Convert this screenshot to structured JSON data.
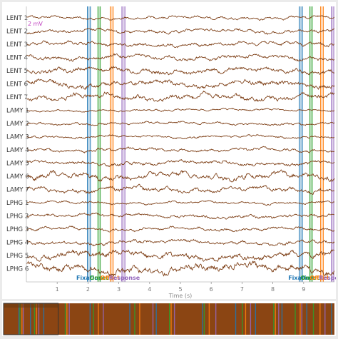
{
  "chart_data": {
    "type": "line",
    "xlabel": "Time (s)",
    "xlim": [
      0,
      10
    ],
    "x_ticks": [
      1,
      2,
      3,
      4,
      5,
      6,
      7,
      8,
      9
    ],
    "scale_label": "2 mV",
    "trace_color": "#7a3a10",
    "channels": [
      "LENT 1",
      "LENT 2",
      "LENT 3",
      "LENT 4",
      "LENT 5",
      "LENT 6",
      "LENT 7",
      "LAMY 1",
      "LAMY 2",
      "LAMY 3",
      "LAMY 4",
      "LAMY 5",
      "LAMY 6",
      "LAMY 7",
      "LPHG 1",
      "LPHG 2",
      "LPHG 3",
      "LPHG 4",
      "LPHG 5",
      "LPHG 6"
    ],
    "channel_amplitude": [
      0.45,
      0.55,
      0.6,
      0.7,
      0.8,
      0.9,
      0.9,
      0.35,
      0.4,
      0.4,
      0.5,
      0.6,
      1.0,
      0.8,
      0.4,
      0.55,
      0.5,
      0.6,
      1.1,
      1.3
    ],
    "events": [
      {
        "name": "Fixation",
        "color": "#1f77b4",
        "start": 1.98,
        "end": 2.08,
        "label_x": 1.62
      },
      {
        "name": "Onset",
        "color": "#2ca02c",
        "start": 2.32,
        "end": 2.4,
        "label_x": 2.05
      },
      {
        "name": "Offset",
        "color": "#ff7f0e",
        "start": 2.72,
        "end": 2.82,
        "label_x": 2.4
      },
      {
        "name": "Response",
        "color": "#9467bd",
        "start": 3.1,
        "end": 3.2,
        "label_x": 2.68
      },
      {
        "name": "Fixation",
        "color": "#1f77b4",
        "start": 8.86,
        "end": 8.96,
        "label_x": 8.5
      },
      {
        "name": "Onset",
        "color": "#2ca02c",
        "start": 9.2,
        "end": 9.28,
        "label_x": 8.9
      },
      {
        "name": "Offset",
        "color": "#ff7f0e",
        "start": 9.55,
        "end": 9.64,
        "label_x": 9.2
      },
      {
        "name": "Response",
        "color": "#9467bd",
        "start": 9.9,
        "end": 9.98,
        "label_x": 9.5
      }
    ],
    "overview": {
      "background": "#8b4513",
      "window_fraction": [
        0.0,
        0.165
      ],
      "marker_colors": [
        "#1f77b4",
        "#2ca02c",
        "#ff7f0e",
        "#9467bd"
      ],
      "marker_positions": [
        0.045,
        0.048,
        0.054,
        0.058,
        0.08,
        0.092,
        0.098,
        0.105,
        0.12,
        0.185,
        0.19,
        0.197,
        0.26,
        0.27,
        0.285,
        0.3,
        0.38,
        0.395,
        0.41,
        0.45,
        0.46,
        0.5,
        0.505,
        0.515,
        0.6,
        0.605,
        0.62,
        0.64,
        0.7,
        0.72,
        0.73,
        0.745,
        0.76,
        0.815,
        0.82,
        0.83,
        0.84,
        0.88,
        0.895,
        0.9,
        0.915,
        0.935,
        0.955,
        0.97,
        0.99
      ]
    }
  }
}
